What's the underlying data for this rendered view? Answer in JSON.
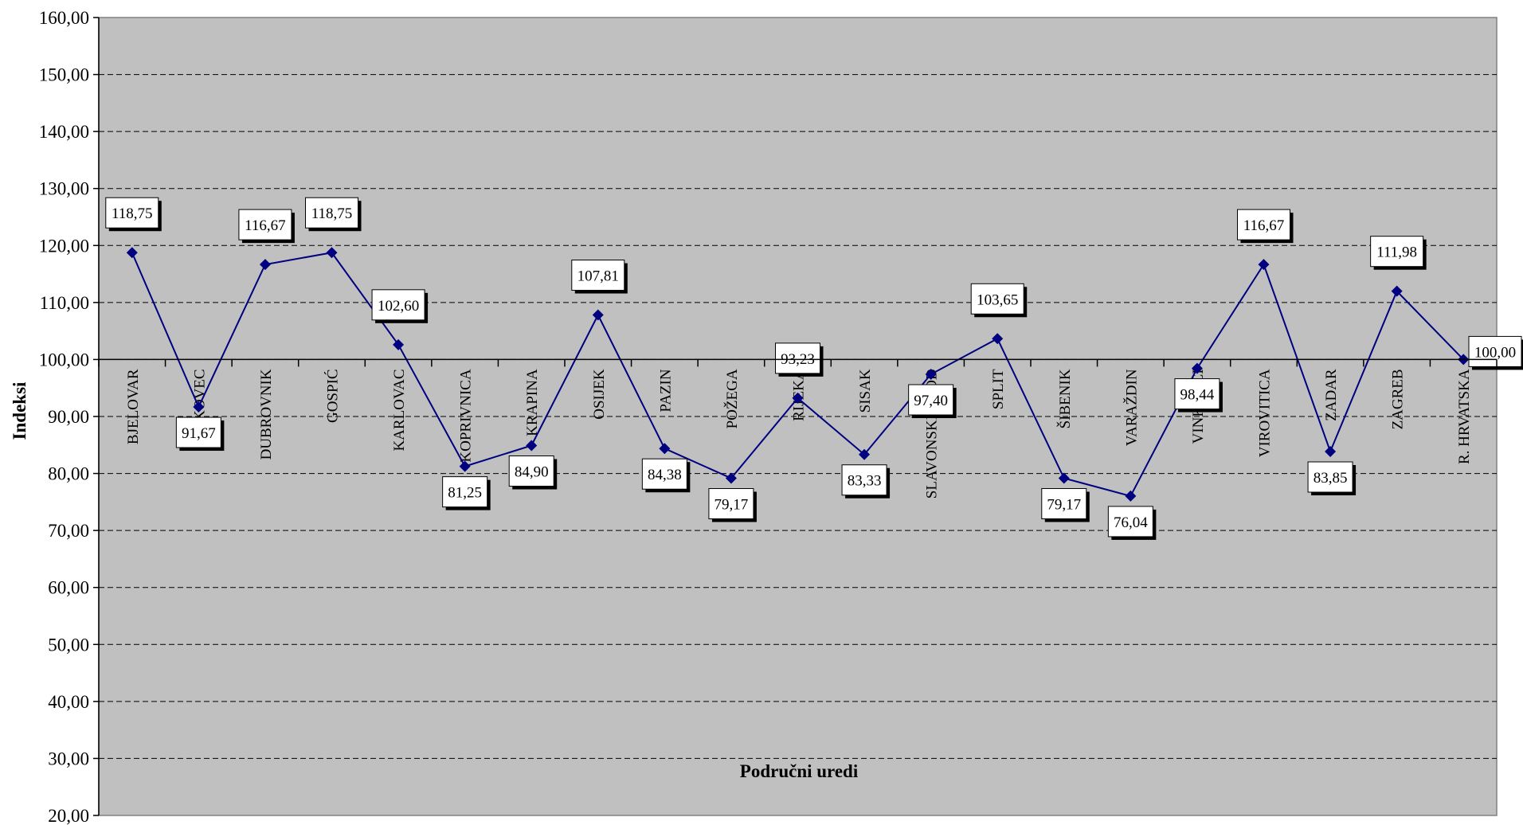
{
  "chart_data": {
    "type": "line",
    "title": "",
    "ylabel": "Indeksi",
    "xlabel": "Područni uredi",
    "ylim": [
      20,
      160
    ],
    "ytick_step": 10,
    "ytick_labels": [
      "20,00",
      "30,00",
      "40,00",
      "50,00",
      "60,00",
      "70,00",
      "80,00",
      "90,00",
      "100,00",
      "110,00",
      "120,00",
      "130,00",
      "140,00",
      "150,00",
      "160,00"
    ],
    "grid": true,
    "baseline_value": 100,
    "categories": [
      "BJELOVAR",
      "ČAKOVEC",
      "DUBROVNIK",
      "GOSPIĆ",
      "KARLOVAC",
      "KOPRIVNICA",
      "KRAPINA",
      "OSIJEK",
      "PAZIN",
      "POŽEGA",
      "RIJEKA",
      "SISAK",
      "SLAVONSKI BROD",
      "SPLIT",
      "ŠIBENIK",
      "VARAŽDIN",
      "VINKOVCI",
      "VIROVITICA",
      "ZADAR",
      "ZAGREB",
      "R. HRVATSKA"
    ],
    "series": [
      {
        "values": [
          118.75,
          91.67,
          116.67,
          118.75,
          102.6,
          81.25,
          84.9,
          107.81,
          84.38,
          79.17,
          93.23,
          83.33,
          97.4,
          103.65,
          79.17,
          76.04,
          98.44,
          116.67,
          83.85,
          111.98,
          100.0
        ],
        "data_labels": [
          "118,75",
          "91,67",
          "116,67",
          "118,75",
          "102,60",
          "81,25",
          "84,90",
          "107,81",
          "84,38",
          "79,17",
          "93,23",
          "83,33",
          "97,40",
          "103,65",
          "79,17",
          "76,04",
          "98,44",
          "116,67",
          "83,85",
          "111,98",
          "100,00"
        ]
      }
    ],
    "colors": {
      "plot_background": "#c0c0c0",
      "line": "#000080",
      "marker": "#000080",
      "grid": "#000000",
      "label_box": "#ffffff"
    }
  }
}
